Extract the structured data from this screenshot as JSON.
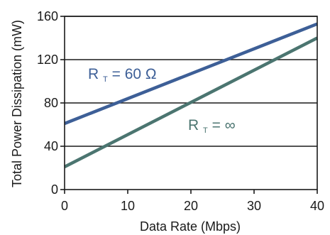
{
  "chart_data": {
    "type": "line",
    "title": "",
    "xlabel": "Data Rate (Mbps)",
    "ylabel": "Total Power Dissipation (mW)",
    "xlim": [
      0,
      40
    ],
    "ylim": [
      0,
      160
    ],
    "x_ticks": [
      0,
      10,
      20,
      30,
      40
    ],
    "y_ticks": [
      0,
      40,
      80,
      120,
      160
    ],
    "grid": "horizontal",
    "series": [
      {
        "name_main": "R",
        "name_sub": "T",
        "name_rest": " = 60 Ω",
        "color": "#3d5f97",
        "x": [
          0,
          40
        ],
        "y": [
          61,
          153
        ]
      },
      {
        "name_main": "R",
        "name_sub": "T",
        "name_rest": " = ∞",
        "color": "#4b7570",
        "x": [
          0,
          40
        ],
        "y": [
          21,
          140
        ]
      }
    ]
  }
}
